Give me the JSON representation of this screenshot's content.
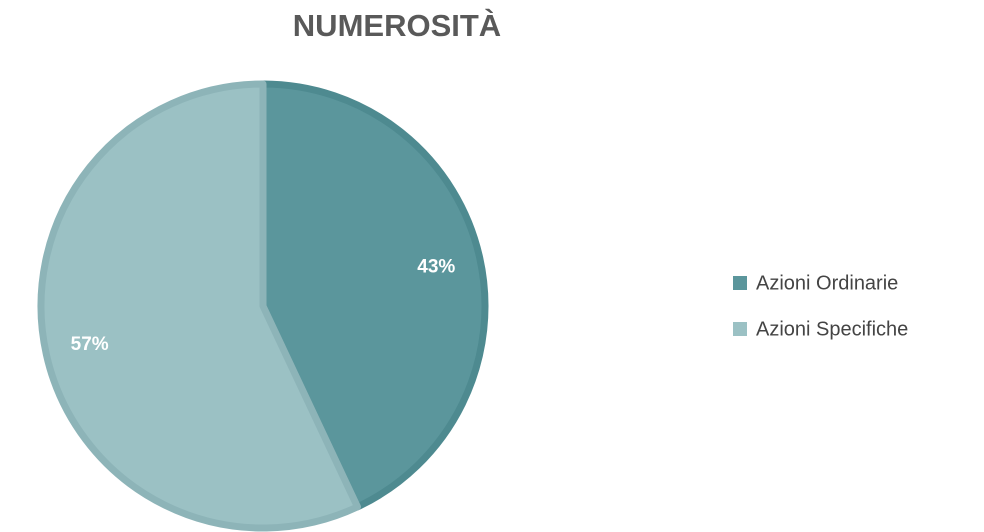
{
  "chart_data": {
    "type": "pie",
    "title": "NUMEROSITÀ",
    "categories": [
      "Azioni Ordinarie",
      "Azioni Specifiche"
    ],
    "values": [
      43,
      57
    ],
    "value_labels": [
      "43%",
      "57%"
    ],
    "colors": [
      "#5b969c",
      "#9bc1c4"
    ],
    "border_colors": [
      "#4e8a90",
      "#8db4b8"
    ],
    "legend": "right"
  }
}
